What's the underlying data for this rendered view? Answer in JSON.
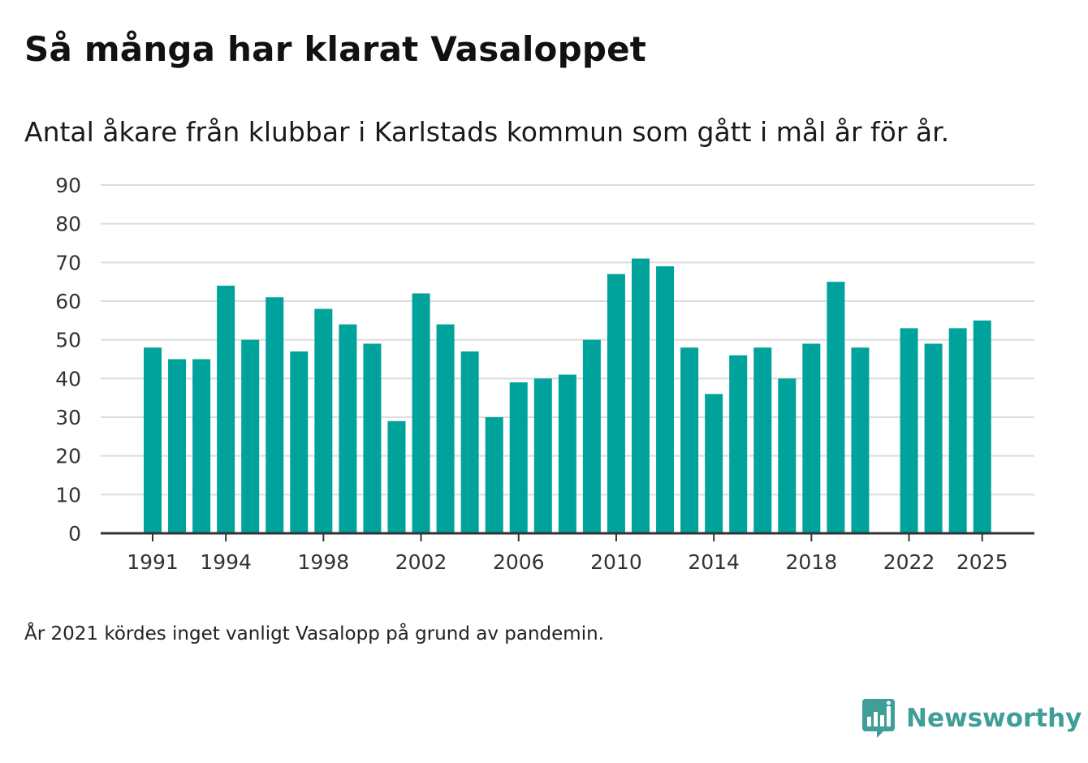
{
  "header": {
    "title": "Så många har klarat Vasaloppet",
    "subtitle": "Antal åkare från klubbar i Karlstads kommun som gått i mål år för år."
  },
  "chart_data": {
    "type": "bar",
    "title": "Så många har klarat Vasaloppet",
    "subtitle": "Antal åkare från klubbar i Karlstads kommun som gått i mål år för år.",
    "xlabel": "",
    "ylabel": "",
    "ylim": [
      0,
      90
    ],
    "y_ticks": [
      0,
      10,
      20,
      30,
      40,
      50,
      60,
      70,
      80,
      90
    ],
    "x_ticks": [
      "1991",
      "1994",
      "1998",
      "2002",
      "2006",
      "2010",
      "2014",
      "2018",
      "2022",
      "2025"
    ],
    "grid": true,
    "bar_color": "#00a39b",
    "categories": [
      1991,
      1992,
      1993,
      1994,
      1995,
      1996,
      1997,
      1998,
      1999,
      2000,
      2001,
      2002,
      2003,
      2004,
      2005,
      2006,
      2007,
      2008,
      2009,
      2010,
      2011,
      2012,
      2013,
      2014,
      2015,
      2016,
      2017,
      2018,
      2019,
      2020,
      2021,
      2022,
      2023,
      2024,
      2025
    ],
    "values": [
      48,
      45,
      45,
      64,
      50,
      61,
      47,
      58,
      54,
      49,
      29,
      62,
      54,
      47,
      30,
      39,
      40,
      41,
      50,
      67,
      71,
      69,
      48,
      36,
      46,
      48,
      40,
      49,
      65,
      48,
      null,
      53,
      49,
      53,
      55
    ]
  },
  "footnote": "År 2021 kördes inget vanligt Vasalopp på grund av pandemin.",
  "brand": {
    "name": "Newsworthy",
    "logo_icon": "newsworthy-logo-icon",
    "color": "#3f9e98"
  }
}
